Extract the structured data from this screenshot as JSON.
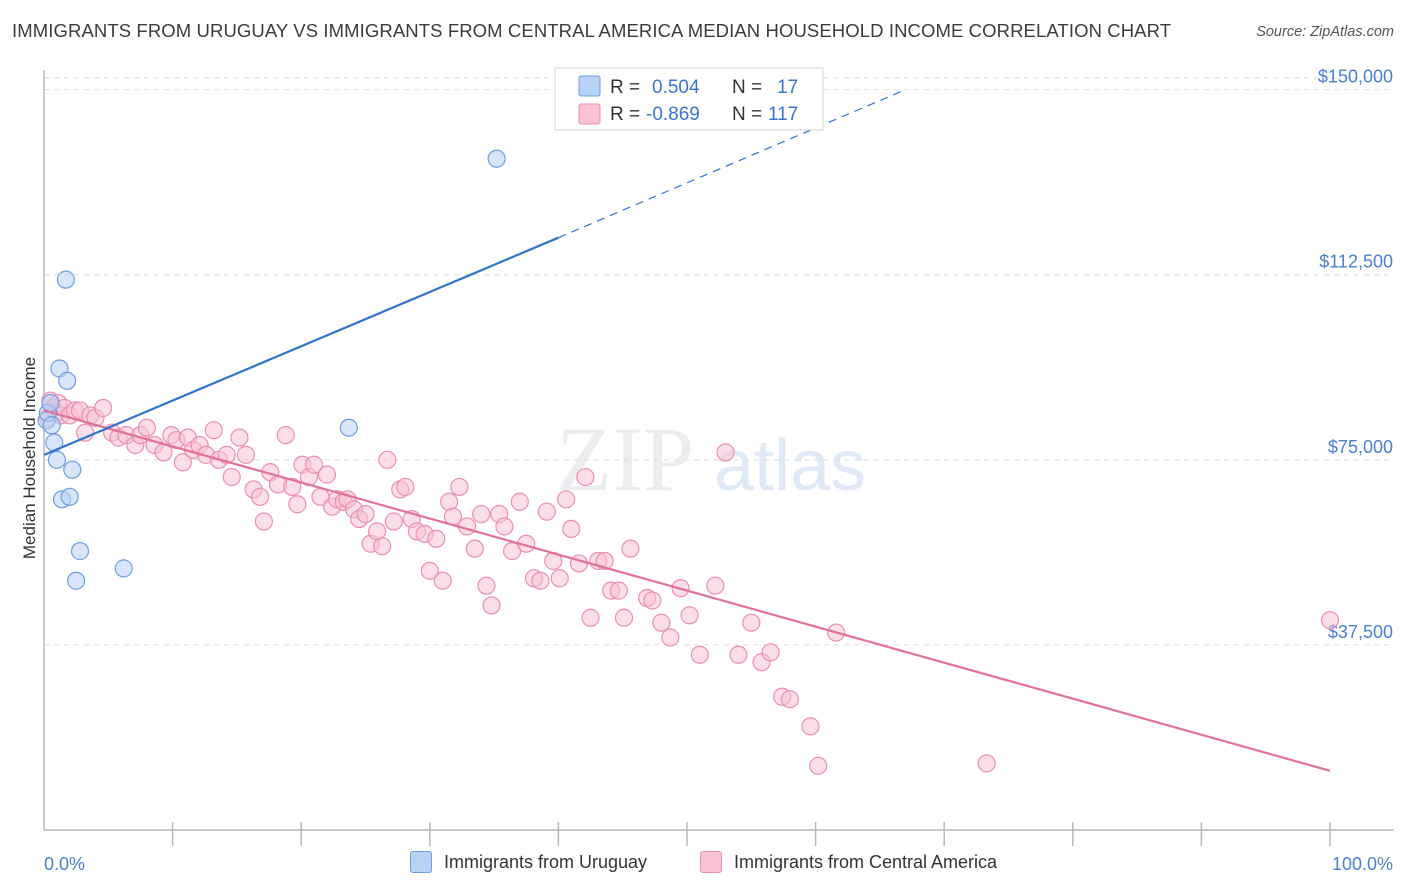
{
  "title": "IMMIGRANTS FROM URUGUAY VS IMMIGRANTS FROM CENTRAL AMERICA MEDIAN HOUSEHOLD INCOME CORRELATION CHART",
  "source": "Source: ZipAtlas.com",
  "watermark": {
    "zip": "ZIP",
    "atlas": "atlas"
  },
  "colors": {
    "blue_fill": "#b7d2f5",
    "blue_stroke": "#6f9ee0",
    "blue_line": "#2f74cc",
    "pink_fill": "#f8c3d4",
    "pink_stroke": "#ec8fae",
    "pink_line": "#e2709c",
    "axis_label": "#4a7fd4",
    "grid": "#dedede"
  },
  "legend": {
    "rows": [
      {
        "r_label": "R =",
        "r_value": "0.504",
        "n_label": "N =",
        "n_value": "17",
        "color": "blue"
      },
      {
        "r_label": "R =",
        "r_value": "-0.869",
        "n_label": "N =",
        "n_value": "117",
        "color": "pink"
      }
    ]
  },
  "bottom_legend": {
    "uruguay": "Immigrants from Uruguay",
    "central_america": "Immigrants from Central America"
  },
  "chart_data": {
    "type": "scatter",
    "title": "IMMIGRANTS FROM URUGUAY VS IMMIGRANTS FROM CENTRAL AMERICA MEDIAN HOUSEHOLD INCOME CORRELATION CHART",
    "xlabel": "",
    "ylabel": "Median Household Income",
    "x_unit": "percent",
    "xlim": [
      0,
      100
    ],
    "ylim": [
      0,
      156000
    ],
    "x_tick_labels": [
      "0.0%",
      "100.0%"
    ],
    "y_ticks": [
      37500,
      75000,
      112500,
      150000
    ],
    "y_tick_labels": [
      "$37,500",
      "$75,000",
      "$112,500",
      "$150,000"
    ],
    "grid": "horizontal dashed",
    "legend_position": "top-center",
    "series": [
      {
        "name": "Immigrants from Uruguay",
        "color": "blue",
        "r": 0.504,
        "n": 17,
        "points": [
          [
            0.2,
            83000
          ],
          [
            0.3,
            84500
          ],
          [
            0.5,
            86500
          ],
          [
            0.6,
            82000
          ],
          [
            0.8,
            78500
          ],
          [
            1.0,
            75000
          ],
          [
            1.2,
            93500
          ],
          [
            1.4,
            67000
          ],
          [
            1.7,
            111500
          ],
          [
            1.8,
            91000
          ],
          [
            2.0,
            67500
          ],
          [
            2.2,
            73000
          ],
          [
            2.5,
            50500
          ],
          [
            2.8,
            56500
          ],
          [
            6.2,
            53000
          ],
          [
            23.7,
            81500
          ],
          [
            35.2,
            136000
          ]
        ],
        "trend": {
          "x0": 0,
          "y0": 76000,
          "x1": 40,
          "y1": 120000,
          "dashed_to_x": 67,
          "dashed_to_y": 150000
        }
      },
      {
        "name": "Immigrants from Central America",
        "color": "pink",
        "r": -0.869,
        "n": 117,
        "points": [
          [
            0.3,
            83500
          ],
          [
            0.5,
            87000
          ],
          [
            0.7,
            85500
          ],
          [
            0.9,
            84500
          ],
          [
            1.1,
            86500
          ],
          [
            1.3,
            84000
          ],
          [
            1.6,
            85500
          ],
          [
            2.0,
            84000
          ],
          [
            2.4,
            85000
          ],
          [
            2.8,
            85000
          ],
          [
            3.2,
            80500
          ],
          [
            3.6,
            84000
          ],
          [
            4.0,
            83500
          ],
          [
            4.6,
            85500
          ],
          [
            5.3,
            80500
          ],
          [
            5.8,
            79500
          ],
          [
            6.4,
            80000
          ],
          [
            7.1,
            78000
          ],
          [
            7.5,
            80000
          ],
          [
            8.0,
            81500
          ],
          [
            8.6,
            78000
          ],
          [
            9.3,
            76500
          ],
          [
            9.9,
            80000
          ],
          [
            10.3,
            79000
          ],
          [
            10.8,
            74500
          ],
          [
            11.2,
            79500
          ],
          [
            11.6,
            77000
          ],
          [
            12.1,
            78000
          ],
          [
            12.6,
            76000
          ],
          [
            13.2,
            81000
          ],
          [
            13.6,
            75000
          ],
          [
            14.2,
            76000
          ],
          [
            14.6,
            71500
          ],
          [
            15.2,
            79500
          ],
          [
            15.7,
            76000
          ],
          [
            16.3,
            69000
          ],
          [
            16.8,
            67500
          ],
          [
            17.1,
            62500
          ],
          [
            17.6,
            72500
          ],
          [
            18.2,
            70000
          ],
          [
            18.8,
            80000
          ],
          [
            19.3,
            69500
          ],
          [
            19.7,
            66000
          ],
          [
            20.1,
            74000
          ],
          [
            20.6,
            71500
          ],
          [
            21.0,
            74000
          ],
          [
            21.5,
            67500
          ],
          [
            22.0,
            72000
          ],
          [
            22.4,
            65500
          ],
          [
            22.8,
            67000
          ],
          [
            23.3,
            66500
          ],
          [
            23.6,
            67000
          ],
          [
            24.1,
            65000
          ],
          [
            24.5,
            63000
          ],
          [
            25.0,
            64000
          ],
          [
            25.4,
            58000
          ],
          [
            25.9,
            60500
          ],
          [
            26.3,
            57500
          ],
          [
            26.7,
            75000
          ],
          [
            27.2,
            62500
          ],
          [
            27.7,
            69000
          ],
          [
            28.1,
            69500
          ],
          [
            28.6,
            63000
          ],
          [
            29.0,
            60500
          ],
          [
            29.6,
            60000
          ],
          [
            30.0,
            52500
          ],
          [
            30.5,
            59000
          ],
          [
            31.0,
            50500
          ],
          [
            31.5,
            66500
          ],
          [
            31.8,
            63500
          ],
          [
            32.3,
            69500
          ],
          [
            32.9,
            61500
          ],
          [
            33.5,
            57000
          ],
          [
            34.0,
            64000
          ],
          [
            34.4,
            49500
          ],
          [
            34.8,
            45500
          ],
          [
            35.4,
            64000
          ],
          [
            35.8,
            61500
          ],
          [
            36.4,
            56500
          ],
          [
            37.0,
            66500
          ],
          [
            37.5,
            58000
          ],
          [
            38.1,
            51000
          ],
          [
            38.6,
            50500
          ],
          [
            39.1,
            64500
          ],
          [
            39.6,
            54500
          ],
          [
            40.1,
            51000
          ],
          [
            40.6,
            67000
          ],
          [
            41.0,
            61000
          ],
          [
            41.6,
            54000
          ],
          [
            42.1,
            71500
          ],
          [
            42.5,
            43000
          ],
          [
            43.1,
            54500
          ],
          [
            43.6,
            54500
          ],
          [
            44.1,
            48500
          ],
          [
            44.7,
            48500
          ],
          [
            45.1,
            43000
          ],
          [
            45.6,
            57000
          ],
          [
            46.9,
            47000
          ],
          [
            47.3,
            46500
          ],
          [
            48.0,
            42000
          ],
          [
            48.7,
            39000
          ],
          [
            49.5,
            49000
          ],
          [
            50.2,
            43500
          ],
          [
            51.0,
            35500
          ],
          [
            52.2,
            49500
          ],
          [
            53.0,
            76500
          ],
          [
            54.0,
            35500
          ],
          [
            55.0,
            42000
          ],
          [
            55.8,
            34000
          ],
          [
            56.5,
            36000
          ],
          [
            57.4,
            27000
          ],
          [
            58.0,
            26500
          ],
          [
            59.6,
            21000
          ],
          [
            60.2,
            13000
          ],
          [
            61.6,
            40000
          ],
          [
            73.3,
            13500
          ],
          [
            100.0,
            42500
          ]
        ],
        "trend": {
          "x0": 0,
          "y0": 85000,
          "x1": 100,
          "y1": 12000
        }
      }
    ]
  }
}
